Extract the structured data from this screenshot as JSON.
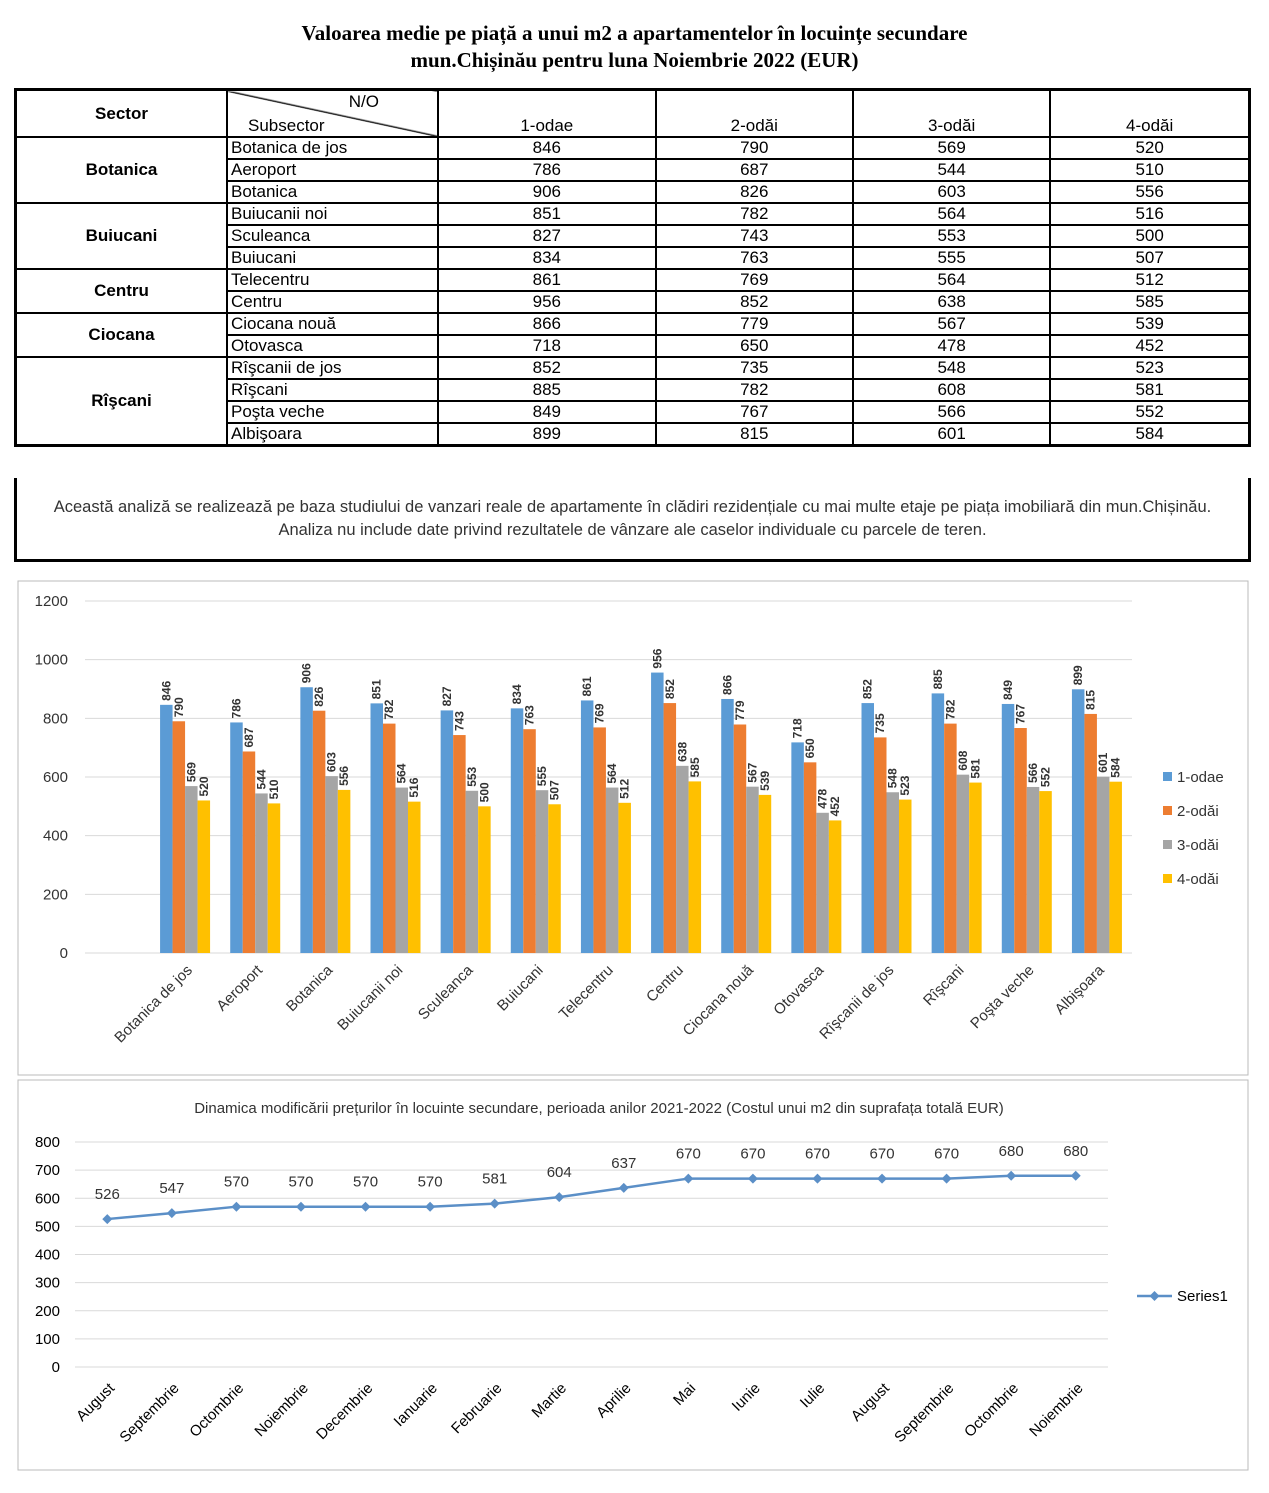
{
  "header": {
    "title": [
      "Valoarea medie pe piață a unui m2 a apartamentelor în locuințe secundare",
      "mun.Chișinău pentru luna Noiembrie 2022 (EUR)"
    ]
  },
  "table": {
    "header": {
      "sector": "Sector",
      "no": "N/O",
      "subsector": "Subsector",
      "columns": [
        "1-odae",
        "2-odăi",
        "3-odăi",
        "4-odăi"
      ]
    },
    "groups": [
      {
        "sector": "Botanica",
        "rows": [
          {
            "name": "Botanica de jos",
            "values": [
              846,
              790,
              569,
              520
            ]
          },
          {
            "name": "Aeroport",
            "values": [
              786,
              687,
              544,
              510
            ]
          },
          {
            "name": "Botanica",
            "values": [
              906,
              826,
              603,
              556
            ]
          }
        ]
      },
      {
        "sector": "Buiucani",
        "rows": [
          {
            "name": "Buiucanii noi",
            "values": [
              851,
              782,
              564,
              516
            ]
          },
          {
            "name": "Sculeanca",
            "values": [
              827,
              743,
              553,
              500
            ]
          },
          {
            "name": "Buiucani",
            "values": [
              834,
              763,
              555,
              507
            ]
          }
        ]
      },
      {
        "sector": "Centru",
        "rows": [
          {
            "name": "Telecentru",
            "values": [
              861,
              769,
              564,
              512
            ]
          },
          {
            "name": "Centru",
            "values": [
              956,
              852,
              638,
              585
            ]
          }
        ]
      },
      {
        "sector": "Ciocana",
        "rows": [
          {
            "name": "Ciocana nouă",
            "values": [
              866,
              779,
              567,
              539
            ]
          },
          {
            "name": "Otovasca",
            "values": [
              718,
              650,
              478,
              452
            ]
          }
        ]
      },
      {
        "sector": "Rîşcani",
        "rows": [
          {
            "name": "Rîşcanii de jos",
            "values": [
              852,
              735,
              548,
              523
            ]
          },
          {
            "name": "Rîşcani",
            "values": [
              885,
              782,
              608,
              581
            ]
          },
          {
            "name": "Poşta veche",
            "values": [
              849,
              767,
              566,
              552
            ]
          },
          {
            "name": "Albişoara",
            "values": [
              899,
              815,
              601,
              584
            ]
          }
        ]
      }
    ]
  },
  "note": "Această analiză se realizează pe baza studiului de vanzari reale de apartamente în clădiri rezidențiale cu mai multe etaje pe piața imobiliară din mun.Chișinău. Analiza nu include date privind rezultatele de vânzare ale caselor individuale cu parcele de teren.",
  "chart_data": [
    {
      "type": "bar",
      "categories": [
        "Botanica de jos",
        "Aeroport",
        "Botanica",
        "Buiucanii noi",
        "Sculeanca",
        "Buiucani",
        "Telecentru",
        "Centru",
        "Ciocana nouă",
        "Otovasca",
        "Rîşcanii de jos",
        "Rîşcani",
        "Poşta veche",
        "Albişoara"
      ],
      "series": [
        {
          "name": "1-odae",
          "color": "#5b9bd5",
          "values": [
            846,
            786,
            906,
            851,
            827,
            834,
            861,
            956,
            866,
            718,
            852,
            885,
            849,
            899
          ]
        },
        {
          "name": "2-odăi",
          "color": "#ed7d31",
          "values": [
            790,
            687,
            826,
            782,
            743,
            763,
            769,
            852,
            779,
            650,
            735,
            782,
            767,
            815
          ]
        },
        {
          "name": "3-odăi",
          "color": "#a5a5a5",
          "values": [
            569,
            544,
            603,
            564,
            553,
            555,
            564,
            638,
            567,
            478,
            548,
            608,
            566,
            601
          ]
        },
        {
          "name": "4-odăi",
          "color": "#ffc000",
          "values": [
            520,
            510,
            556,
            516,
            500,
            507,
            512,
            585,
            539,
            452,
            523,
            581,
            552,
            584
          ]
        }
      ],
      "ylim": [
        0,
        1200
      ],
      "yticks": [
        0,
        200,
        400,
        600,
        800,
        1000,
        1200
      ],
      "grid": true,
      "legend": "right"
    },
    {
      "type": "line",
      "title": "Dinamica modificării prețurilor în locuinte secundare, perioada anilor 2021-2022 (Costul unui m2 din suprafața totală EUR)",
      "categories": [
        "August",
        "Septembrie",
        "Octombrie",
        "Noiembrie",
        "Decembrie",
        "Ianuarie",
        "Februarie",
        "Martie",
        "Aprilie",
        "Mai",
        "Iunie",
        "Iulie",
        "August",
        "Septembrie",
        "Octombrie",
        "Noiembrie"
      ],
      "series": [
        {
          "name": "Series1",
          "color": "#5b8fc7",
          "values": [
            526,
            547,
            570,
            570,
            570,
            570,
            581,
            604,
            637,
            670,
            670,
            670,
            670,
            670,
            680,
            680
          ]
        }
      ],
      "ylim": [
        0,
        800
      ],
      "yticks": [
        0,
        100,
        200,
        300,
        400,
        500,
        600,
        700,
        800
      ],
      "grid": true,
      "legend": "right"
    }
  ]
}
